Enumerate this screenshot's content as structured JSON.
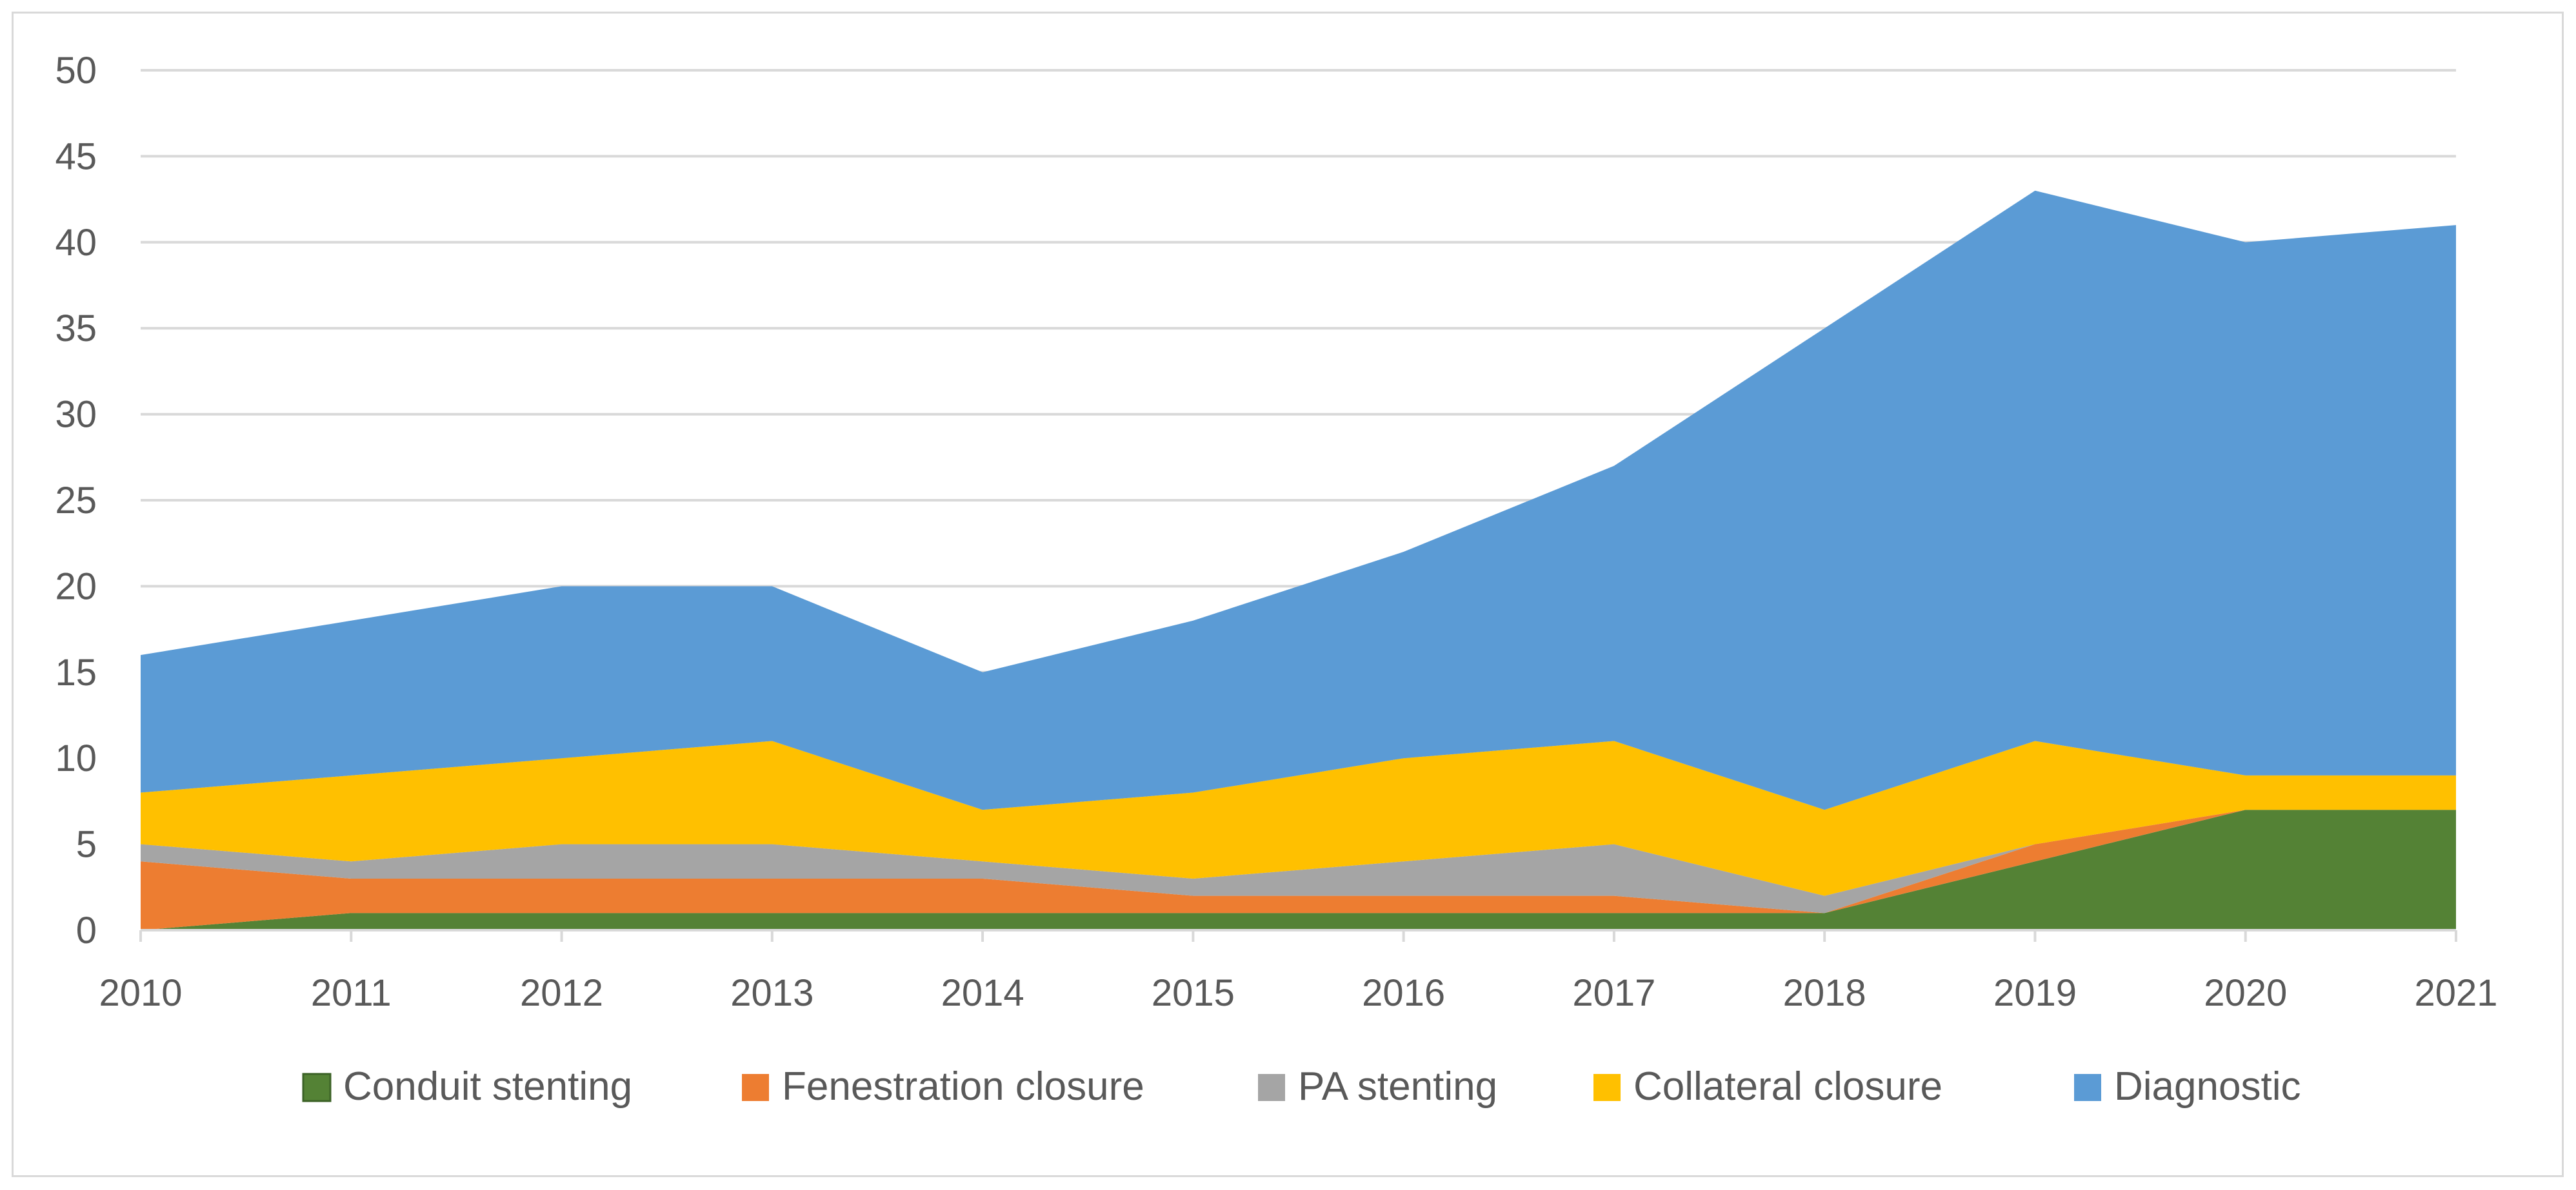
{
  "chart_data": {
    "type": "area",
    "stacked": true,
    "title": "",
    "xlabel": "",
    "ylabel": "",
    "x": [
      "2010",
      "2011",
      "2012",
      "2013",
      "2014",
      "2015",
      "2016",
      "2017",
      "2018",
      "2019",
      "2020",
      "2021"
    ],
    "ylim": [
      0,
      50
    ],
    "yticks": [
      "0",
      "5",
      "10",
      "15",
      "20",
      "25",
      "30",
      "35",
      "40",
      "45",
      "50"
    ],
    "grid": true,
    "legend_position": "bottom",
    "series": [
      {
        "name": "Conduit stenting",
        "color": "#548235",
        "values": [
          0,
          1,
          1,
          1,
          1,
          1,
          1,
          1,
          1,
          4,
          7,
          7
        ]
      },
      {
        "name": "Fenestration closure",
        "color": "#ed7d31",
        "values": [
          4,
          2,
          2,
          2,
          2,
          1,
          1,
          1,
          0,
          1,
          0,
          0
        ]
      },
      {
        "name": "PA stenting",
        "color": "#a5a5a5",
        "values": [
          1,
          1,
          2,
          2,
          1,
          1,
          2,
          3,
          1,
          0,
          0,
          0
        ]
      },
      {
        "name": "Collateral closure",
        "color": "#ffc000",
        "values": [
          3,
          5,
          5,
          6,
          3,
          5,
          6,
          6,
          5,
          6,
          2,
          2
        ]
      },
      {
        "name": "Diagnostic",
        "color": "#5b9bd5",
        "values": [
          8,
          9,
          10,
          9,
          8,
          10,
          12,
          16,
          28,
          32,
          31,
          32
        ]
      }
    ]
  }
}
